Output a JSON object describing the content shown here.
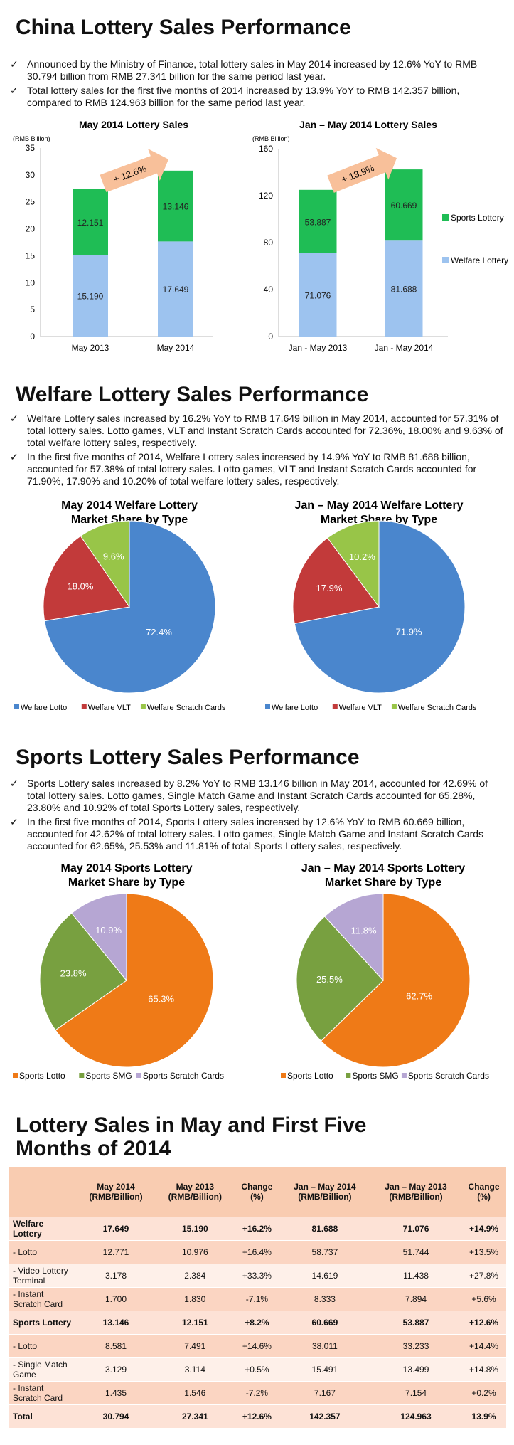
{
  "sections": {
    "s1_title": "China Lottery Sales Performance",
    "s1_bullets": [
      "Announced by the Ministry of Finance, total lottery sales in May 2014 increased by 12.6% YoY to RMB 30.794 billion from RMB 27.341 billion for the same period last year.",
      "Total lottery sales for the first five months of 2014 increased by 13.9% YoY to RMB 142.357 billion, compared to RMB 124.963 billion for the same period last year."
    ],
    "s2_title": "Welfare Lottery Sales Performance",
    "s2_bullets": [
      "Welfare Lottery sales increased by 16.2% YoY to RMB 17.649 billion in May 2014, accounted for 57.31% of total lottery sales. Lotto games, VLT and Instant Scratch Cards accounted for 72.36%, 18.00% and 9.63% of total welfare lottery sales, respectively.",
      "In the first five months of 2014, Welfare Lottery sales increased by 14.9% YoY to RMB 81.688 billion, accounted for 57.38% of total lottery sales. Lotto games, VLT and Instant Scratch Cards accounted for 71.90%, 17.90% and 10.20% of total welfare lottery sales, respectively."
    ],
    "s3_title": "Sports Lottery Sales Performance",
    "s3_bullets": [
      "Sports Lottery sales increased by 8.2% YoY to RMB 13.146 billion in May 2014, accounted for 42.69% of total lottery sales. Lotto games, Single Match Game and Instant Scratch Cards accounted for 65.28%, 23.80% and 10.92% of total Sports Lottery sales, respectively.",
      "In the first five months of 2014, Sports Lottery sales increased by 12.6% YoY to RMB 60.669 billion, accounted for 42.62% of total lottery sales. Lotto games, Single Match Game and Instant Scratch Cards accounted for 62.65%, 25.53% and 11.81% of total Sports Lottery sales, respectively."
    ],
    "s4_title_line1": "Lottery Sales in May and First Five",
    "s4_title_line2": "Months of 2014"
  },
  "colors": {
    "welfare_bar": "#9dc3ef",
    "sports_bar": "#1fbd55",
    "arrow": "#f8c09a",
    "welfare_lotto": "#4a86cd",
    "welfare_vlt": "#c23a3a",
    "welfare_scratch": "#98c548",
    "sports_lotto": "#ef7a17",
    "sports_smg": "#78a040",
    "sports_scratch": "#b6a6d3"
  },
  "chart_data": [
    {
      "type": "bar",
      "stacked": true,
      "title": "May 2014 Lottery Sales",
      "ylabel": "(RMB Billion)",
      "categories": [
        "May 2013",
        "May 2014"
      ],
      "series": [
        {
          "name": "Welfare Lottery",
          "values": [
            15.19,
            17.649
          ],
          "labels": [
            "15.190",
            "17.649"
          ]
        },
        {
          "name": "Sports Lottery",
          "values": [
            12.151,
            13.146
          ],
          "labels": [
            "12.151",
            "13.146"
          ]
        }
      ],
      "ylim": [
        0,
        35
      ],
      "yticks": [
        0,
        5,
        10,
        15,
        20,
        25,
        30,
        35
      ],
      "annotation": "+ 12.6%"
    },
    {
      "type": "bar",
      "stacked": true,
      "title": "Jan – May 2014 Lottery Sales",
      "ylabel": "(RMB Billion)",
      "categories": [
        "Jan - May 2013",
        "Jan - May 2014"
      ],
      "series": [
        {
          "name": "Welfare Lottery",
          "values": [
            71.076,
            81.688
          ],
          "labels": [
            "71.076",
            "81.688"
          ]
        },
        {
          "name": "Sports Lottery",
          "values": [
            53.887,
            60.669
          ],
          "labels": [
            "53.887",
            "60.669"
          ]
        }
      ],
      "ylim": [
        0,
        160
      ],
      "yticks": [
        0,
        40,
        80,
        120,
        160
      ],
      "annotation": "+ 13.9%",
      "legend": [
        "Sports Lottery",
        "Welfare Lottery"
      ],
      "legend_position": "right"
    },
    {
      "type": "pie",
      "title": [
        "May 2014 Welfare Lottery",
        "Market Share by Type"
      ],
      "slices": [
        {
          "name": "Welfare Lotto",
          "value": 72.4,
          "label": "72.4%"
        },
        {
          "name": "Welfare VLT",
          "value": 18.0,
          "label": "18.0%"
        },
        {
          "name": "Welfare Scratch Cards",
          "value": 9.6,
          "label": "9.6%"
        }
      ],
      "legend_position": "bottom"
    },
    {
      "type": "pie",
      "title": [
        "Jan – May 2014 Welfare Lottery",
        "Market Share by Type"
      ],
      "slices": [
        {
          "name": "Welfare Lotto",
          "value": 71.9,
          "label": "71.9%"
        },
        {
          "name": "Welfare VLT",
          "value": 17.9,
          "label": "17.9%"
        },
        {
          "name": "Welfare Scratch Cards",
          "value": 10.2,
          "label": "10.2%"
        }
      ],
      "legend_position": "bottom"
    },
    {
      "type": "pie",
      "title": [
        "May 2014 Sports Lottery",
        "Market Share by Type"
      ],
      "slices": [
        {
          "name": "Sports Lotto",
          "value": 65.3,
          "label": "65.3%"
        },
        {
          "name": "Sports SMG",
          "value": 23.8,
          "label": "23.8%"
        },
        {
          "name": "Sports Scratch Cards",
          "value": 10.9,
          "label": "10.9%"
        }
      ],
      "legend_position": "bottom"
    },
    {
      "type": "pie",
      "title": [
        "Jan – May 2014 Sports Lottery",
        "Market Share by Type"
      ],
      "slices": [
        {
          "name": "Sports Lotto",
          "value": 62.7,
          "label": "62.7%"
        },
        {
          "name": "Sports SMG",
          "value": 25.5,
          "label": "25.5%"
        },
        {
          "name": "Sports Scratch Cards",
          "value": 11.8,
          "label": "11.8%"
        }
      ],
      "legend_position": "bottom"
    },
    {
      "type": "table",
      "headers": [
        "",
        "May 2014 (RMB/Billion)",
        "May 2013 (RMB/Billion)",
        "Change (%)",
        "Jan – May 2014 (RMB/Billion)",
        "Jan – May 2013 (RMB/Billion)",
        "Change (%)"
      ],
      "rows": [
        {
          "style": "hl",
          "cells": [
            "Welfare Lottery",
            "17.649",
            "15.190",
            "+16.2%",
            "81.688",
            "71.076",
            "+14.9%"
          ]
        },
        {
          "style": "dk",
          "cells": [
            "- Lotto",
            "12.771",
            "10.976",
            "+16.4%",
            "58.737",
            "51.744",
            "+13.5%"
          ]
        },
        {
          "style": "lt",
          "cells": [
            "- Video Lottery Terminal",
            "3.178",
            "2.384",
            "+33.3%",
            "14.619",
            "11.438",
            "+27.8%"
          ]
        },
        {
          "style": "dk",
          "cells": [
            "- Instant Scratch Card",
            "1.700",
            "1.830",
            "-7.1%",
            "8.333",
            "7.894",
            "+5.6%"
          ]
        },
        {
          "style": "hl",
          "cells": [
            "Sports Lottery",
            "13.146",
            "12.151",
            "+8.2%",
            "60.669",
            "53.887",
            "+12.6%"
          ]
        },
        {
          "style": "dk",
          "cells": [
            "- Lotto",
            "8.581",
            "7.491",
            "+14.6%",
            "38.011",
            "33.233",
            "+14.4%"
          ]
        },
        {
          "style": "lt",
          "cells": [
            "- Single Match Game",
            "3.129",
            "3.114",
            "+0.5%",
            "15.491",
            "13.499",
            "+14.8%"
          ]
        },
        {
          "style": "dk",
          "cells": [
            "- Instant Scratch Card",
            "1.435",
            "1.546",
            "-7.2%",
            "7.167",
            "7.154",
            "+0.2%"
          ]
        },
        {
          "style": "total",
          "cells": [
            "Total",
            "30.794",
            "27.341",
            "+12.6%",
            "142.357",
            "124.963",
            "13.9%"
          ]
        }
      ]
    }
  ]
}
